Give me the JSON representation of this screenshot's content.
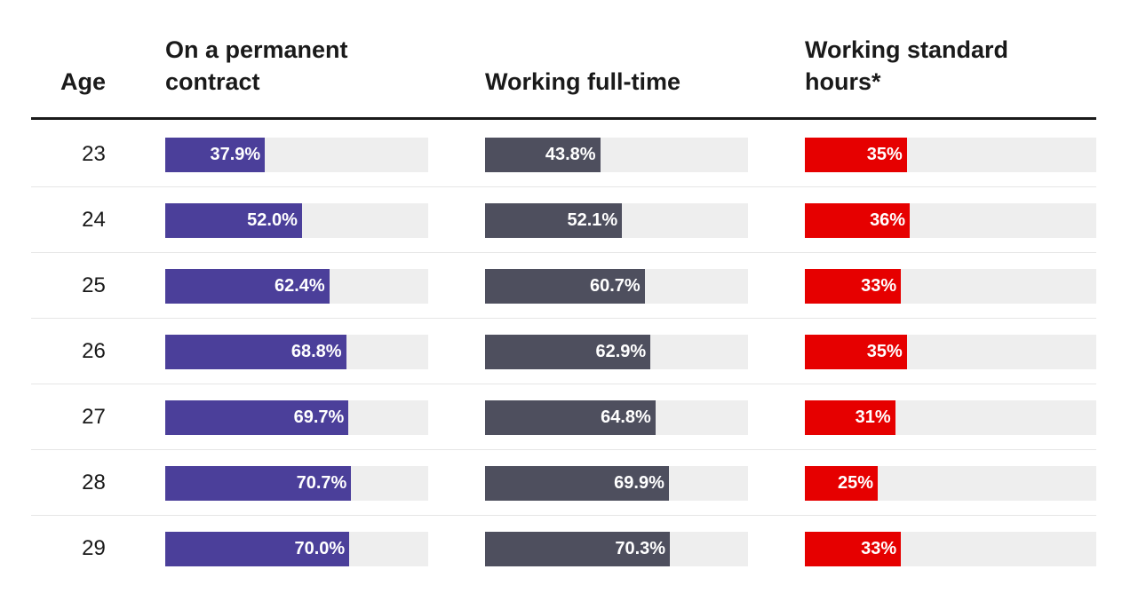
{
  "chart_data": {
    "type": "table",
    "columns": [
      {
        "key": "age",
        "label": "Age"
      },
      {
        "key": "permanent",
        "label": "On a permanent contract",
        "color": "#4b3f9a",
        "labels": [
          "37.9%",
          "52.0%",
          "62.4%",
          "68.8%",
          "69.7%",
          "70.7%",
          "70.0%"
        ]
      },
      {
        "key": "fulltime",
        "label": "Working full-time",
        "color": "#4e4f5e",
        "labels": [
          "43.8%",
          "52.1%",
          "60.7%",
          "62.9%",
          "64.8%",
          "69.9%",
          "70.3%"
        ]
      },
      {
        "key": "standard",
        "label": "Working standard hours*",
        "color": "#e60000",
        "labels": [
          "35%",
          "36%",
          "33%",
          "35%",
          "31%",
          "25%",
          "33%"
        ]
      }
    ],
    "categories": [
      "23",
      "24",
      "25",
      "26",
      "27",
      "28",
      "29"
    ],
    "series": [
      {
        "name": "On a permanent contract",
        "values": [
          37.9,
          52.0,
          62.4,
          68.8,
          69.7,
          70.7,
          70.0
        ]
      },
      {
        "name": "Working full-time",
        "values": [
          43.8,
          52.1,
          60.7,
          62.9,
          64.8,
          69.9,
          70.3
        ]
      },
      {
        "name": "Working standard hours*",
        "values": [
          35,
          36,
          33,
          35,
          31,
          25,
          33
        ]
      }
    ],
    "xlim": [
      0,
      100
    ]
  }
}
